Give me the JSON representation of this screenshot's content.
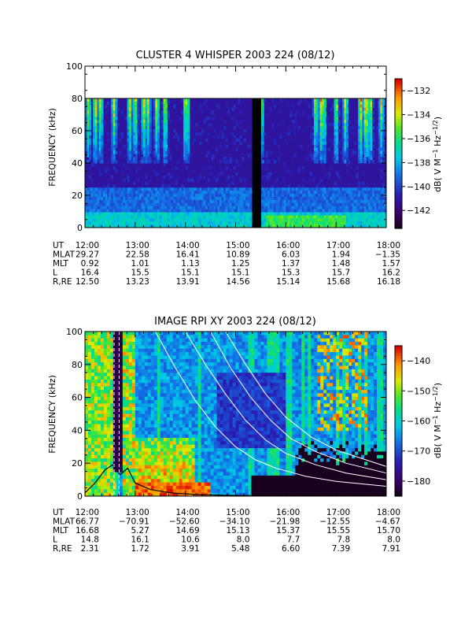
{
  "chart_data": [
    {
      "type": "heatmap",
      "title": "CLUSTER 4 WHISPER 2003 224 (08/12)",
      "ylabel": "FREQUENCY (kHz)",
      "xlim": [
        12,
        18
      ],
      "ylim": [
        0,
        100
      ],
      "x_ticks": [
        "12:00",
        "13:00",
        "14:00",
        "15:00",
        "16:00",
        "17:00",
        "18:00"
      ],
      "y_ticks": [
        "0",
        "20",
        "40",
        "60",
        "80",
        "100"
      ],
      "data_frequency_max_khz": 80,
      "data_gap": {
        "label": "",
        "start_hour": 15.33,
        "end_hour": 15.51
      },
      "colorbar": {
        "label": "dB( V M⁻¹ Hz⁻¹ᐟ²)",
        "label_text": "dB( V M^-1 Hz^-1/2)",
        "range": [
          -143.5,
          -131
        ],
        "ticks": [
          "-132",
          "-134",
          "-136",
          "-138",
          "-140",
          "-142"
        ],
        "tick_values": [
          -132,
          -134,
          -136,
          -138,
          -140,
          -142
        ]
      },
      "ephemeris": {
        "labels": [
          "UT",
          "MLAT",
          "MLT",
          "L",
          "R,RE"
        ],
        "rows": [
          [
            "12:00",
            "13:00",
            "14:00",
            "15:00",
            "16:00",
            "17:00",
            "18:00"
          ],
          [
            "29.27",
            "22.58",
            "16.41",
            "10.89",
            "6.03",
            "1.94",
            "−1.35"
          ],
          [
            "0.92",
            "1.01",
            "1.13",
            "1.25",
            "1.37",
            "1.48",
            "1.57"
          ],
          [
            "16.4",
            "15.5",
            "15.1",
            "15.1",
            "15.3",
            "15.7",
            "16.2"
          ],
          [
            "12.50",
            "13.23",
            "13.91",
            "14.56",
            "15.14",
            "15.68",
            "16.18"
          ]
        ]
      }
    },
    {
      "type": "heatmap",
      "title": "IMAGE RPI XY 2003 224 (08/12)",
      "ylabel": "FREQUENCY (kHz)",
      "xlim": [
        12,
        18
      ],
      "ylim": [
        0,
        100
      ],
      "x_ticks": [
        "12:00",
        "13:00",
        "14:00",
        "15:00",
        "16:00",
        "17:00",
        "18:00"
      ],
      "y_ticks": [
        "0",
        "20",
        "40",
        "60",
        "80",
        "100"
      ],
      "colorbar": {
        "label": "dB( V M⁻¹ Hz⁻¹ᐟ²)",
        "label_text": "dB( V M^-1 Hz^-1/2)",
        "range": [
          -185,
          -135
        ],
        "ticks": [
          "-140",
          "-150",
          "-160",
          "-170",
          "-180"
        ],
        "tick_values": [
          -140,
          -150,
          -160,
          -170,
          -180
        ]
      },
      "overlay_curves": {
        "white_curves": [
          {
            "x": [
              13.4,
              13.8,
              14.2,
              14.6,
              15.0,
              15.4,
              15.8,
              16.4,
              17.0,
              18.0
            ],
            "y": [
              100,
              78,
              58,
              42,
              30,
              22,
              17,
              12,
              9,
              6
            ]
          },
          {
            "x": [
              14.0,
              14.4,
              14.8,
              15.2,
              15.6,
              16.0,
              16.6,
              17.2,
              18.0
            ],
            "y": [
              100,
              80,
              62,
              46,
              34,
              26,
              19,
              14,
              10
            ]
          },
          {
            "x": [
              14.5,
              14.9,
              15.3,
              15.7,
              16.1,
              16.6,
              17.2,
              18.0
            ],
            "y": [
              100,
              78,
              60,
              46,
              35,
              27,
              20,
              14
            ]
          },
          {
            "x": [
              14.8,
              15.2,
              15.6,
              16.0,
              16.5,
              17.0,
              17.6,
              18.0
            ],
            "y": [
              100,
              80,
              62,
              48,
              36,
              28,
              22,
              18
            ]
          }
        ],
        "black_curve": {
          "x": [
            12.0,
            12.2,
            12.4,
            12.55,
            12.7,
            12.85,
            13.0,
            13.3,
            13.7,
            14.2,
            14.8,
            15.3
          ],
          "y": [
            2,
            8,
            16,
            19,
            13,
            17,
            8,
            4,
            2,
            1,
            0.5,
            0.3
          ]
        }
      },
      "ephemeris": {
        "labels": [
          "UT",
          "MLAT",
          "MLT",
          "L",
          "R,RE"
        ],
        "rows": [
          [
            "12:00",
            "13:00",
            "14:00",
            "15:00",
            "16:00",
            "17:00",
            "18:00"
          ],
          [
            "66.77",
            "−70.91",
            "−52.60",
            "−34.10",
            "−21.98",
            "−12.55",
            "−4.67"
          ],
          [
            "16.68",
            "5.27",
            "14.69",
            "15.13",
            "15.37",
            "15.55",
            "15.70"
          ],
          [
            "14.8",
            "16.1",
            "10.6",
            "8.0",
            "7.7",
            "7.8",
            "8.0"
          ],
          [
            "2.31",
            "1.72",
            "3.91",
            "5.48",
            "6.60",
            "7.39",
            "7.91"
          ]
        ]
      }
    }
  ]
}
